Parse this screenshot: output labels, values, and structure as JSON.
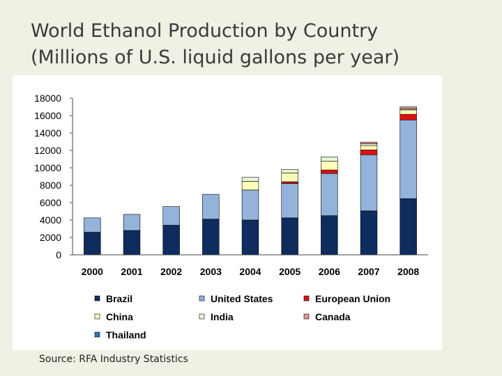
{
  "title": {
    "line1": "World Ethanol Production by Country",
    "line2": "(Millions of U.S. liquid gallons per year)"
  },
  "source": "Source: RFA Industry Statistics",
  "chart_data": {
    "type": "bar",
    "stacked": true,
    "title": "World Ethanol Production by Country",
    "xlabel": "",
    "ylabel": "Millions of U.S. liquid gallons per year",
    "ylim": [
      0,
      18000
    ],
    "yticks": [
      0,
      2000,
      4000,
      6000,
      8000,
      10000,
      12000,
      14000,
      16000,
      18000
    ],
    "categories": [
      "2000",
      "2001",
      "2002",
      "2003",
      "2004",
      "2005",
      "2006",
      "2007",
      "2008"
    ],
    "series": [
      {
        "name": "Brazil",
        "color": "#0e2c5e",
        "values": [
          2600,
          2800,
          3400,
          4100,
          4000,
          4250,
          4500,
          5050,
          6450
        ]
      },
      {
        "name": "United States",
        "color": "#93b3da",
        "values": [
          1650,
          1850,
          2150,
          2850,
          3450,
          3950,
          4850,
          6450,
          9050
        ]
      },
      {
        "name": "European Union",
        "color": "#e01010",
        "values": [
          0,
          0,
          0,
          0,
          0,
          200,
          400,
          550,
          650
        ]
      },
      {
        "name": "China",
        "color": "#ffffb8",
        "values": [
          0,
          0,
          0,
          0,
          1000,
          1000,
          1000,
          500,
          500
        ]
      },
      {
        "name": "India",
        "color": "#eaf5d8",
        "values": [
          0,
          0,
          0,
          0,
          450,
          400,
          500,
          200,
          100
        ]
      },
      {
        "name": "Canada",
        "color": "#e49494",
        "values": [
          0,
          0,
          0,
          0,
          0,
          0,
          0,
          200,
          250
        ]
      },
      {
        "name": "Thailand",
        "color": "#2e75b6",
        "values": [
          0,
          0,
          0,
          0,
          0,
          0,
          0,
          0,
          0
        ]
      }
    ],
    "legend_position": "bottom"
  }
}
